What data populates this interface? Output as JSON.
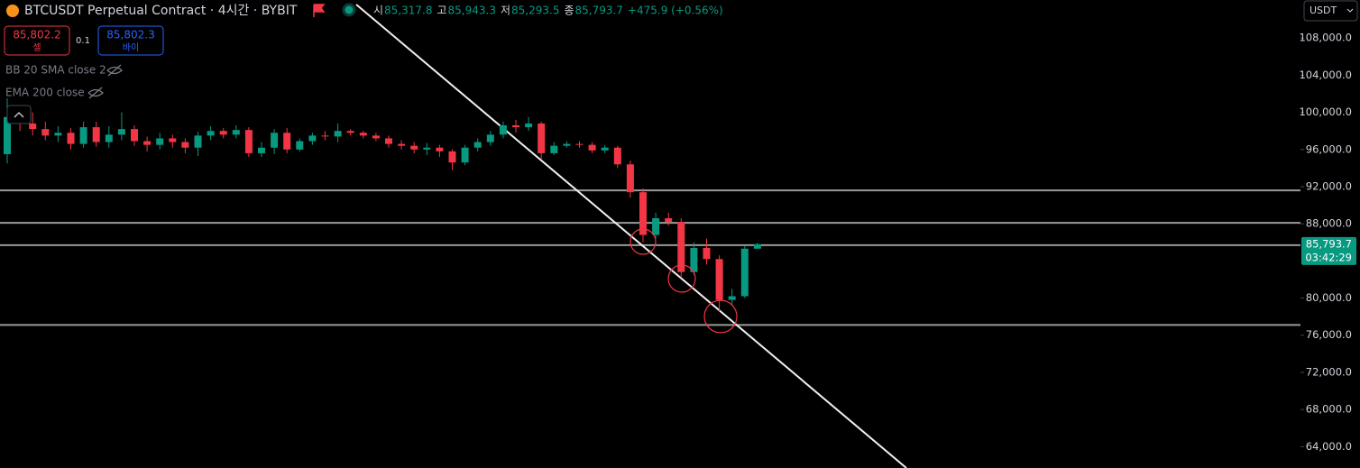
{
  "chart_data": {
    "type": "candlestick",
    "title": "BTCUSDT Perpetual Contract · 4시간 · BYBIT",
    "ohlc_legend": [
      {
        "label": "시",
        "value": "85,317.8"
      },
      {
        "label": "고",
        "value": "85,943.3"
      },
      {
        "label": "저",
        "value": "85,293.5"
      },
      {
        "label": "종",
        "value": "85,793.7"
      }
    ],
    "change": "+475.9 (+0.56%)",
    "sell": {
      "price": "85,802.2",
      "label": "셀"
    },
    "spread": "0.1",
    "buy": {
      "price": "85,802.3",
      "label": "바이"
    },
    "indicators": [
      "BB 20 SMA close 2",
      "EMA 200 close"
    ],
    "currency": "USDT",
    "up_color": "#089981",
    "down_color": "#f23645",
    "open": [
      95500,
      99500,
      98800,
      98200,
      97500,
      97800,
      96600,
      98400,
      96800,
      97600,
      98200,
      96900,
      96500,
      97200,
      96800,
      96200,
      97500,
      98000,
      97600,
      98100,
      95600,
      96200,
      97800,
      96000,
      96900,
      97500,
      97400,
      98000,
      97800,
      97500,
      97200,
      96600,
      96400,
      96000,
      96200,
      95800,
      94600,
      96200,
      96800,
      97600,
      98600,
      98400,
      98800,
      95600,
      96400,
      96600,
      96500,
      95900,
      96200,
      94400,
      91400,
      86800,
      88600,
      88200,
      82800,
      85400,
      84200,
      79800,
      80200,
      85317.8
    ],
    "high": [
      101500,
      100500,
      100000,
      99000,
      98500,
      98300,
      99000,
      99000,
      98500,
      100000,
      98600,
      97400,
      97800,
      97600,
      97200,
      97900,
      98500,
      98300,
      98600,
      98400,
      96800,
      98200,
      98300,
      97200,
      97800,
      98000,
      98800,
      98200,
      98000,
      97800,
      97500,
      97000,
      96800,
      96700,
      96500,
      96000,
      96500,
      97200,
      98000,
      99000,
      99200,
      99500,
      99000,
      96800,
      96900,
      96900,
      96800,
      96500,
      96400,
      94800,
      91800,
      89200,
      89200,
      88600,
      86000,
      86400,
      84600,
      81000,
      85600,
      85943.3
    ],
    "low": [
      94500,
      98000,
      97500,
      97000,
      96800,
      96000,
      96200,
      96300,
      96200,
      97000,
      96400,
      95800,
      96000,
      96200,
      95600,
      95300,
      97000,
      97200,
      97200,
      95200,
      95200,
      95500,
      95600,
      95800,
      96500,
      97000,
      96800,
      97500,
      97200,
      96900,
      96200,
      96000,
      95600,
      95400,
      95200,
      93800,
      94300,
      95800,
      96400,
      97200,
      97800,
      98000,
      95000,
      95400,
      96200,
      96200,
      95600,
      95600,
      94000,
      90800,
      86000,
      86400,
      87800,
      82200,
      82500,
      83600,
      78600,
      79200,
      80000,
      85293.5
    ],
    "close": [
      99500,
      98800,
      98200,
      97500,
      97800,
      96600,
      98400,
      96800,
      97600,
      98200,
      96900,
      96500,
      97200,
      96800,
      96200,
      97500,
      98000,
      97600,
      98100,
      95600,
      96200,
      97800,
      96000,
      96900,
      97500,
      97400,
      98000,
      97800,
      97500,
      97200,
      96600,
      96400,
      96000,
      96200,
      95800,
      94600,
      96200,
      96800,
      97600,
      98600,
      98400,
      98800,
      95600,
      96400,
      96600,
      96500,
      95900,
      96200,
      94400,
      91400,
      86800,
      88600,
      88200,
      82800,
      85400,
      84200,
      79800,
      80200,
      85317.8,
      85793.7
    ],
    "horizontal_lines": [
      91600,
      88100,
      85700,
      77100
    ],
    "last_price": {
      "value": 85793.7,
      "label": "85,793.7"
    },
    "countdown": "03:42:29",
    "ylim": [
      61700,
      112100
    ],
    "yticks": [
      {
        "value": 108000,
        "label": "108,000.0"
      },
      {
        "value": 104000,
        "label": "104,000.0"
      },
      {
        "value": 100000,
        "label": "100,000.0"
      },
      {
        "value": 96000,
        "label": "96,000.0"
      },
      {
        "value": 92000,
        "label": "92,000.0"
      },
      {
        "value": 88000,
        "label": "88,000.0"
      },
      {
        "value": 80000,
        "label": "80,000.0"
      },
      {
        "value": 76000,
        "label": "76,000.0"
      },
      {
        "value": 72000,
        "label": "72,000.0"
      },
      {
        "value": 68000,
        "label": "68,000.0"
      },
      {
        "value": 64000,
        "label": "64,000.0"
      }
    ]
  }
}
